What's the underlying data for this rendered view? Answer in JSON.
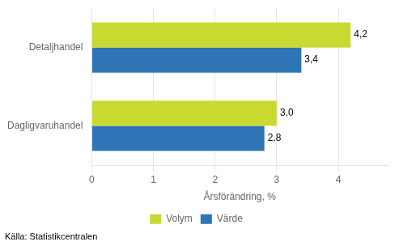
{
  "chart_data": {
    "type": "bar",
    "orientation": "horizontal",
    "categories": [
      "Dagligvaruhandel",
      "Detaljhandel"
    ],
    "series": [
      {
        "name": "Volym",
        "color": "#c8d932",
        "values": [
          3.0,
          4.2
        ],
        "value_labels": [
          "3,0",
          "4,2"
        ]
      },
      {
        "name": "Värde",
        "color": "#2e75b6",
        "values": [
          2.8,
          3.4
        ],
        "value_labels": [
          "2,8",
          "3,4"
        ]
      }
    ],
    "xlabel": "Årsförändring, %",
    "xlim": [
      0,
      4.8
    ],
    "xticks": [
      0,
      1,
      2,
      3,
      4
    ],
    "grid": true,
    "legend": "bottom",
    "data_labels": true,
    "annotations": [
      "Källa: Statistikcentralen"
    ]
  }
}
